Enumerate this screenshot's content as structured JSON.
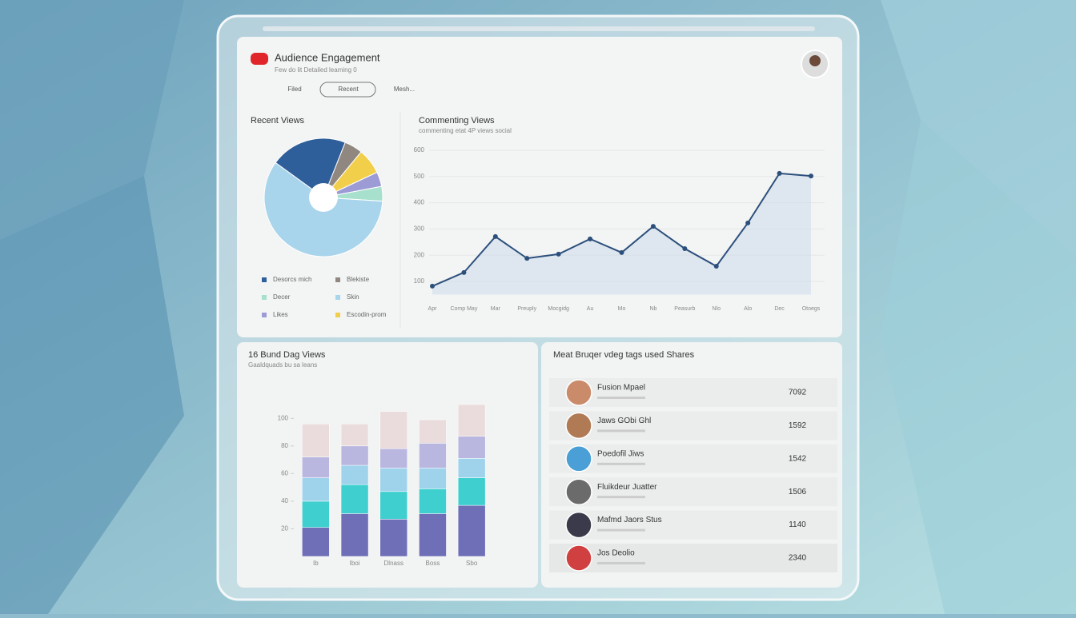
{
  "header": {
    "title": "Audience Engagement",
    "subtitle": "Few do lit Detailed leaming 0",
    "tabs": [
      "Filed",
      "Recent",
      "Mesh..."
    ]
  },
  "pie_chart": {
    "type": "pie",
    "title": "Recent Views",
    "categories": [
      "Desorcs mich",
      "Blekiste",
      "Escodin-prom",
      "Likes",
      "Decer",
      "Skin"
    ],
    "values": [
      21,
      5,
      7,
      4,
      4,
      59
    ],
    "colors": [
      "#2f5f9a",
      "#8f8780",
      "#f2cf4a",
      "#9d9bd6",
      "#a7e0cc",
      "#a9d5ec"
    ]
  },
  "line_chart": {
    "type": "line",
    "title": "Commenting Views",
    "subtitle": "commenting etat 4P views social",
    "categories": [
      "Apr",
      "Comp May",
      "Mar",
      "Preuply",
      "Mocgidg",
      "Au",
      "Mo",
      "Nb",
      "Peasurb",
      "Nlo",
      "Alo",
      "Dec",
      "Otoegs"
    ],
    "values": [
      82,
      134,
      271,
      188,
      204,
      262,
      210,
      310,
      225,
      158,
      323,
      512,
      502
    ],
    "color": "#2c4f7c",
    "ylim": [
      50,
      650
    ],
    "yticks": [
      100,
      200,
      300,
      400,
      500,
      600
    ],
    "grid": true
  },
  "bar_chart": {
    "type": "stacked_bar",
    "title": "16 Bund Dag Views",
    "subtitle": "Gaaldquads bu sa leans",
    "categories": [
      "Ib",
      "Iboi",
      "Dlnass",
      "Boss",
      "Sbo"
    ],
    "series": [
      {
        "color": "#6f6fb8",
        "values": [
          21,
          31,
          27,
          31,
          37
        ]
      },
      {
        "color": "#3fcfcf",
        "values": [
          19,
          21,
          20,
          18,
          20
        ]
      },
      {
        "color": "#9fd3ec",
        "values": [
          17,
          14,
          17,
          15,
          14
        ]
      },
      {
        "color": "#b9b6e0",
        "values": [
          15,
          14,
          14,
          18,
          16
        ]
      },
      {
        "color": "#eadcdc",
        "values": [
          24,
          16,
          27,
          17,
          23
        ]
      }
    ],
    "ylim": [
      0,
      110
    ],
    "yticks": [
      20,
      40,
      60,
      80,
      100
    ]
  },
  "table": {
    "title": "Meat Bruqer vdeg tags used Shares",
    "rows": [
      [
        "Fusion Mpael",
        "7092"
      ],
      [
        "Jaws GObi Ghl",
        "1592"
      ],
      [
        "Poedofil Jiws",
        "1542"
      ],
      [
        "Fluikdeur Juatter",
        "1506"
      ],
      [
        "Mafmd Jaors Stus",
        "1140"
      ],
      [
        "Jos Deolio",
        "2340"
      ]
    ]
  }
}
